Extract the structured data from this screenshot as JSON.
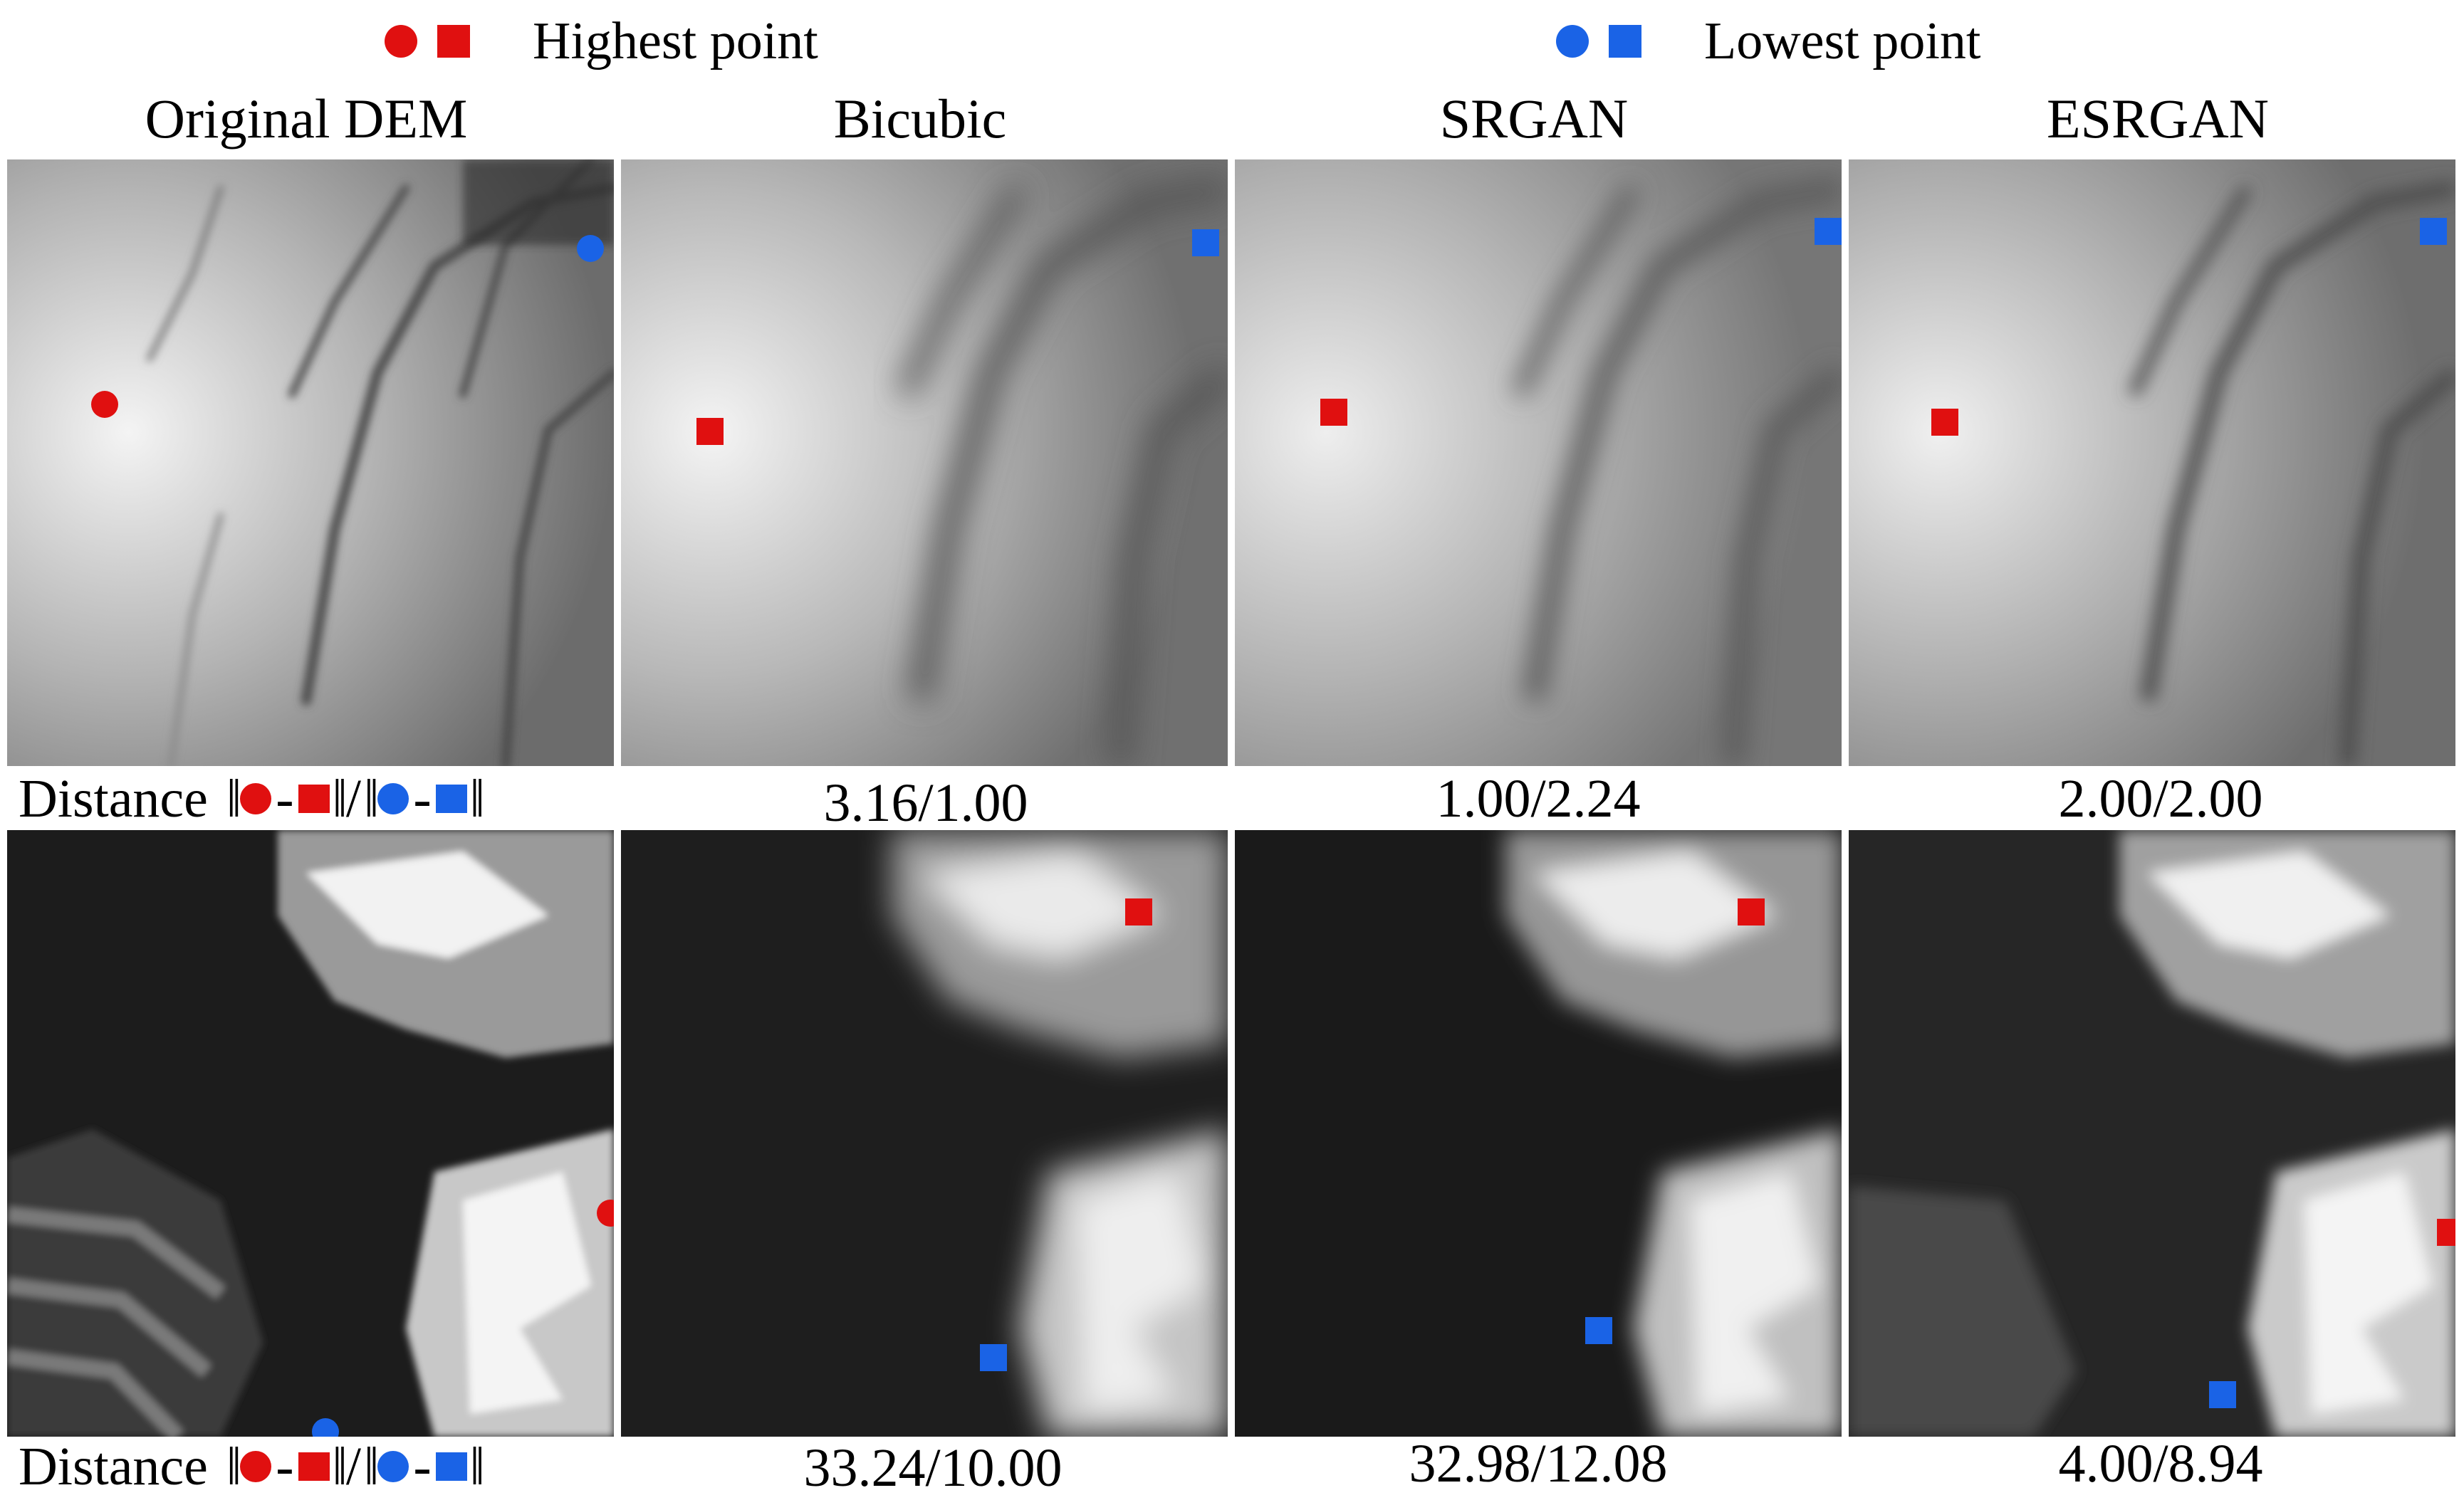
{
  "colors": {
    "highest": "#e01010",
    "lowest": "#1a63e6"
  },
  "legend": {
    "highest_label": "Highest point",
    "lowest_label": "Lowest point"
  },
  "columns": [
    "Original DEM",
    "Bicubic",
    "SRGAN",
    "ESRGAN"
  ],
  "distance_label": "Distance",
  "rows": [
    {
      "distances": [
        "3.16/1.00",
        "1.00/2.24",
        "2.00/2.00"
      ]
    },
    {
      "distances": [
        "33.24/10.00",
        "32.98/12.08",
        "4.00/8.94"
      ]
    }
  ]
}
